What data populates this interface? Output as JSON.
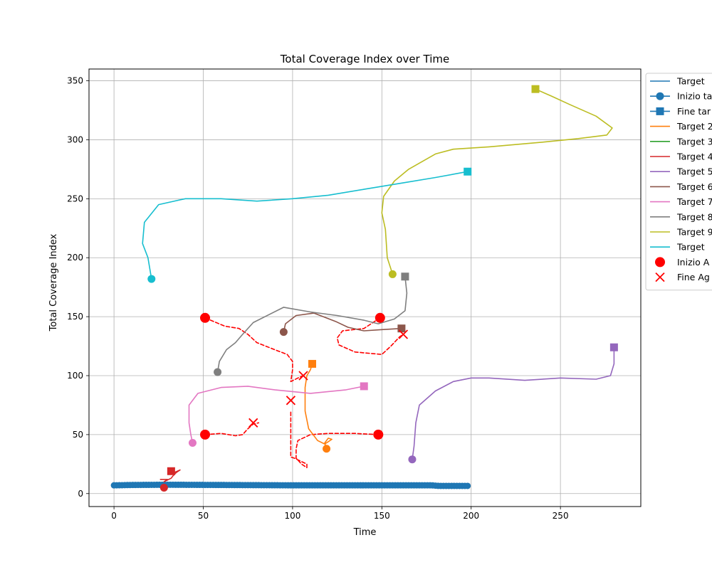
{
  "chart_data": {
    "type": "line",
    "title": "Total Coverage Index over Time",
    "xlabel": "Time",
    "ylabel": "Total Coverage Index",
    "xlim": [
      -14,
      295
    ],
    "ylim": [
      -11,
      360
    ],
    "xticks": [
      0,
      50,
      100,
      150,
      200,
      250
    ],
    "yticks": [
      0,
      50,
      100,
      150,
      200,
      250,
      300,
      350
    ],
    "grid": true,
    "legend_position": "outside upper right (clipped)",
    "legend": [
      {
        "label": "Target",
        "color": "#1f77b4",
        "kind": "line"
      },
      {
        "label": "Inizio ta",
        "color": "#1f77b4",
        "kind": "line-circle"
      },
      {
        "label": "Fine tar",
        "color": "#1f77b4",
        "kind": "line-square"
      },
      {
        "label": "Target 2",
        "color": "#ff7f0e",
        "kind": "line"
      },
      {
        "label": "Target 3",
        "color": "#2ca02c",
        "kind": "line"
      },
      {
        "label": "Target 4",
        "color": "#d62728",
        "kind": "line"
      },
      {
        "label": "Target 5",
        "color": "#9467bd",
        "kind": "line"
      },
      {
        "label": "Target 6",
        "color": "#8c564b",
        "kind": "line"
      },
      {
        "label": "Target 7",
        "color": "#e377c2",
        "kind": "line"
      },
      {
        "label": "Target 8",
        "color": "#7f7f7f",
        "kind": "line"
      },
      {
        "label": "Target 9",
        "color": "#bcbd22",
        "kind": "line"
      },
      {
        "label": "Target",
        "color": "#17becf",
        "kind": "line"
      },
      {
        "label": "Inizio A",
        "color": "#ff0000",
        "kind": "circle"
      },
      {
        "label": "Fine Ag",
        "color": "#ff0000",
        "kind": "x"
      }
    ],
    "series": [
      {
        "color": "#1f77b4",
        "points": [
          [
            0,
            7
          ],
          [
            10,
            7.3
          ],
          [
            30,
            7.5
          ],
          [
            60,
            7.3
          ],
          [
            100,
            7
          ],
          [
            150,
            7
          ],
          [
            178,
            7
          ],
          [
            182,
            6.5
          ],
          [
            199,
            6.5
          ]
        ],
        "dense_markers": {
          "from": 0,
          "to": 199,
          "step": 1.5
        }
      },
      {
        "color": "#ff0000",
        "dashed": true,
        "points": [
          [
            51,
            149
          ],
          [
            62,
            142
          ],
          [
            70,
            140
          ],
          [
            75,
            135
          ],
          [
            80,
            128
          ],
          [
            90,
            122
          ],
          [
            97,
            118
          ],
          [
            100,
            112
          ],
          [
            100,
            105
          ],
          [
            99,
            95
          ],
          [
            103,
            98
          ],
          [
            106,
            100
          ]
        ]
      },
      {
        "color": "#ff0000",
        "dashed": true,
        "points": [
          [
            149,
            149
          ],
          [
            140,
            140
          ],
          [
            128,
            138
          ],
          [
            125,
            132
          ],
          [
            126,
            126
          ],
          [
            135,
            120
          ],
          [
            150,
            118
          ],
          [
            155,
            125
          ],
          [
            160,
            133
          ],
          [
            162,
            135
          ]
        ]
      },
      {
        "color": "#ff0000",
        "dashed": true,
        "points": [
          [
            148,
            50
          ],
          [
            135,
            51
          ],
          [
            120,
            51
          ],
          [
            110,
            50
          ],
          [
            103,
            45
          ],
          [
            102,
            38
          ],
          [
            102,
            30
          ],
          [
            105,
            25
          ],
          [
            108,
            22
          ],
          [
            108,
            25
          ],
          [
            101,
            30
          ],
          [
            99,
            31
          ],
          [
            99,
            70
          ]
        ]
      },
      {
        "color": "#ff0000",
        "dashed": true,
        "points": [
          [
            51,
            50
          ],
          [
            60,
            51
          ],
          [
            68,
            49
          ],
          [
            72,
            50
          ],
          [
            75,
            55
          ],
          [
            78,
            59
          ],
          [
            81,
            60
          ]
        ]
      },
      {
        "color": "#d62728",
        "points": [
          [
            26,
            12
          ],
          [
            30,
            12
          ],
          [
            28,
            10
          ],
          [
            32,
            13
          ],
          [
            33,
            15
          ],
          [
            35,
            18
          ],
          [
            37,
            20
          ],
          [
            34,
            18
          ]
        ]
      },
      {
        "color": "#ff7f0e",
        "points": [
          [
            111,
            110
          ],
          [
            110,
            105
          ],
          [
            108,
            100
          ],
          [
            107,
            90
          ],
          [
            107,
            70
          ],
          [
            109,
            55
          ],
          [
            114,
            45
          ],
          [
            118,
            42
          ],
          [
            120,
            44
          ],
          [
            122,
            46
          ],
          [
            120,
            47
          ],
          [
            118,
            43
          ],
          [
            119,
            38
          ]
        ]
      },
      {
        "color": "#9467bd",
        "points": [
          [
            167,
            29
          ],
          [
            168,
            40
          ],
          [
            169,
            60
          ],
          [
            171,
            75
          ],
          [
            180,
            87
          ],
          [
            190,
            95
          ],
          [
            200,
            98
          ],
          [
            210,
            98
          ],
          [
            230,
            96
          ],
          [
            250,
            98
          ],
          [
            270,
            97
          ],
          [
            278,
            100
          ],
          [
            280,
            110
          ],
          [
            280,
            124
          ]
        ]
      },
      {
        "color": "#8c564b",
        "points": [
          [
            95,
            137
          ],
          [
            96,
            144
          ],
          [
            102,
            151
          ],
          [
            112,
            153
          ],
          [
            124,
            146
          ],
          [
            131,
            141
          ],
          [
            140,
            138
          ],
          [
            150,
            139
          ],
          [
            161,
            140
          ]
        ]
      },
      {
        "color": "#e377c2",
        "points": [
          [
            44,
            43
          ],
          [
            43,
            50
          ],
          [
            42,
            60
          ],
          [
            42,
            75
          ],
          [
            47,
            85
          ],
          [
            60,
            90
          ],
          [
            75,
            91
          ],
          [
            90,
            88
          ],
          [
            110,
            85
          ],
          [
            130,
            88
          ],
          [
            140,
            91
          ]
        ]
      },
      {
        "color": "#7f7f7f",
        "points": [
          [
            58,
            103
          ],
          [
            59,
            112
          ],
          [
            63,
            122
          ],
          [
            68,
            128
          ],
          [
            72,
            135
          ],
          [
            78,
            145
          ],
          [
            95,
            158
          ],
          [
            110,
            154
          ],
          [
            125,
            151
          ],
          [
            140,
            147
          ],
          [
            148,
            144
          ],
          [
            157,
            148
          ],
          [
            163,
            155
          ],
          [
            164,
            170
          ],
          [
            163,
            184
          ]
        ]
      },
      {
        "color": "#bcbd22",
        "points": [
          [
            156,
            186
          ],
          [
            153,
            200
          ],
          [
            152,
            224
          ],
          [
            150,
            238
          ],
          [
            151,
            252
          ],
          [
            157,
            265
          ],
          [
            165,
            275
          ],
          [
            180,
            288
          ],
          [
            190,
            292
          ],
          [
            210,
            294
          ],
          [
            240,
            298
          ],
          [
            260,
            301
          ],
          [
            276,
            304
          ],
          [
            279,
            310
          ],
          [
            270,
            320
          ],
          [
            255,
            330
          ],
          [
            245,
            337
          ],
          [
            236,
            343
          ]
        ]
      },
      {
        "color": "#17becf",
        "points": [
          [
            21,
            182
          ],
          [
            20,
            191
          ],
          [
            19,
            200
          ],
          [
            16,
            212
          ],
          [
            17,
            230
          ],
          [
            25,
            245
          ],
          [
            40,
            250
          ],
          [
            60,
            250
          ],
          [
            80,
            248
          ],
          [
            100,
            250
          ],
          [
            120,
            253
          ],
          [
            140,
            258
          ],
          [
            160,
            263
          ],
          [
            180,
            268
          ],
          [
            198,
            273
          ]
        ]
      }
    ],
    "start_markers": [
      {
        "x": 28,
        "y": 5,
        "color": "#d62728"
      },
      {
        "x": 119,
        "y": 38,
        "color": "#ff7f0e"
      },
      {
        "x": 167,
        "y": 29,
        "color": "#9467bd"
      },
      {
        "x": 95,
        "y": 137,
        "color": "#8c564b"
      },
      {
        "x": 44,
        "y": 43,
        "color": "#e377c2"
      },
      {
        "x": 58,
        "y": 103,
        "color": "#7f7f7f"
      },
      {
        "x": 156,
        "y": 186,
        "color": "#bcbd22"
      },
      {
        "x": 21,
        "y": 182,
        "color": "#17becf"
      }
    ],
    "end_markers": [
      {
        "x": 32,
        "y": 19,
        "color": "#d62728"
      },
      {
        "x": 111,
        "y": 110,
        "color": "#ff7f0e"
      },
      {
        "x": 280,
        "y": 124,
        "color": "#9467bd"
      },
      {
        "x": 161,
        "y": 140,
        "color": "#8c564b"
      },
      {
        "x": 140,
        "y": 91,
        "color": "#e377c2"
      },
      {
        "x": 163,
        "y": 184,
        "color": "#7f7f7f"
      },
      {
        "x": 236,
        "y": 343,
        "color": "#bcbd22"
      },
      {
        "x": 198,
        "y": 273,
        "color": "#17becf"
      }
    ],
    "agent_start": [
      {
        "x": 51,
        "y": 149
      },
      {
        "x": 149,
        "y": 149
      },
      {
        "x": 51,
        "y": 50
      },
      {
        "x": 148,
        "y": 50
      }
    ],
    "agent_end": [
      {
        "x": 106,
        "y": 100
      },
      {
        "x": 162,
        "y": 135
      },
      {
        "x": 99,
        "y": 79
      },
      {
        "x": 78,
        "y": 60
      }
    ]
  }
}
